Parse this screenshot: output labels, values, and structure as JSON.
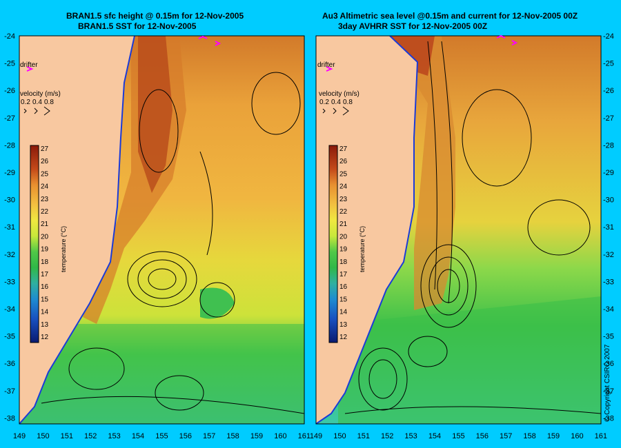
{
  "left_panel": {
    "title_line1": "BRAN1.5 sfc height @ 0.15m for 12-Nov-2005",
    "title_line2": "BRAN1.5 SST for 12-Nov-2005"
  },
  "right_panel": {
    "title_line1": "Au3 Altimetric sea level  @0.15m and current for 12-Nov-2005 00Z",
    "title_line2": "3day AVHRR SST for 12-Nov-2005 00Z"
  },
  "legend": {
    "drifter_label": "drifter",
    "velocity_label": "velocity (m/s)",
    "velocity_values": [
      "0.2",
      "0.4",
      "0.8"
    ],
    "colorbar_label": "temperature (°C)",
    "colorbar_ticks": [
      "27",
      "26",
      "25",
      "24",
      "23",
      "22",
      "21",
      "20",
      "19",
      "18",
      "17",
      "16",
      "15",
      "14",
      "13",
      "12"
    ]
  },
  "axes": {
    "lat_ticks": [
      "-24",
      "-25",
      "-26",
      "-27",
      "-28",
      "-29",
      "-30",
      "-31",
      "-32",
      "-33",
      "-34",
      "-35",
      "-36",
      "-37",
      "-38"
    ],
    "lon_ticks": [
      "149",
      "150",
      "151",
      "152",
      "153",
      "154",
      "155",
      "156",
      "157",
      "158",
      "159",
      "160",
      "161"
    ],
    "lon_range": [
      149,
      161
    ],
    "lat_range": [
      -38,
      -24
    ]
  },
  "copyright": "© Copyright CSIRO 2007",
  "colors": {
    "background": "#00ccff",
    "land": "#f8c8a0",
    "contour": "#000000",
    "drifter": "#ff00ff"
  }
}
